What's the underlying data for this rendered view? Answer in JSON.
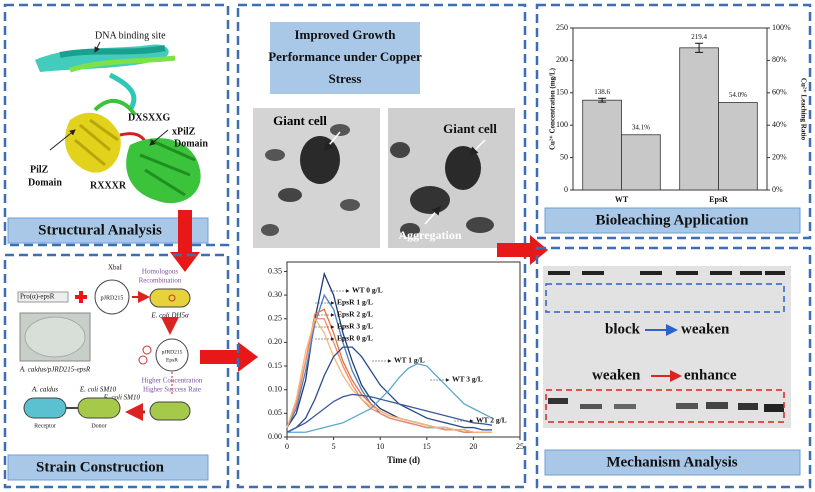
{
  "structural_analysis": {
    "dna_binding_site": "DNA binding site",
    "dxsxxg": "DXSXXG",
    "pilz": [
      "PilZ",
      "Domain"
    ],
    "xpilz": [
      "xPilZ",
      "Domain"
    ],
    "rxxxr": "RXXXR",
    "footer": "Structural Analysis"
  },
  "strain_construction": {
    "promoter": "Pro(α)-epsR",
    "xbai": "XbaI",
    "homologous": [
      "Homologous",
      "Recombination"
    ],
    "plasmid": "pJRD215",
    "dh5a": "E. coli DH5α",
    "plasmid2": [
      "pJRD215",
      "EpsR"
    ],
    "higher": [
      "Higher Concentration",
      "Higher Success Rate"
    ],
    "sm10": "E. coli SM10",
    "acaldus": "A. caldus",
    "sm10b": "E. coli SM10",
    "receptor": "Receptor",
    "donor": "Donor",
    "result": "A. caldus/pJRD215-epsR",
    "footer": "Strain Construction"
  },
  "growth": {
    "title": [
      "Improved Growth",
      "Performance under Copper",
      "Stress"
    ],
    "giant1": "Giant cell",
    "giant2": "Giant cell",
    "aggregation": "Aggregation"
  },
  "bioleaching": {
    "footer": "Bioleaching Application"
  },
  "mechanism": {
    "block": "block",
    "weaken1": "weaken",
    "weaken2": "weaken",
    "enhance": "enhance",
    "footer": "Mechanism Analysis"
  },
  "chart_data": [
    {
      "type": "bar",
      "categories": [
        "WT",
        "EpsR"
      ],
      "ylabel": "Cu²⁺ Concentration (mg/L)",
      "y2label": "Cu²⁺ Leaching Ratio",
      "ylim": [
        0,
        250
      ],
      "yticks": [
        0,
        50,
        100,
        150,
        200,
        250
      ],
      "y2lim": [
        0,
        100
      ],
      "y2ticks": [
        {
          "value": 0,
          "label": "0%"
        },
        {
          "value": 20,
          "label": "20%"
        },
        {
          "value": 40,
          "label": "40%"
        },
        {
          "value": 60,
          "label": "60%"
        },
        {
          "value": 80,
          "label": "80%"
        },
        {
          "value": 100,
          "label": "100%"
        }
      ],
      "series": [
        {
          "color": "#c8c8c8",
          "values": [
            138.6,
            219.4
          ],
          "errors": [
            3,
            7
          ]
        },
        {
          "color": "#c8c8c8",
          "axis": "y2",
          "values": [
            34.1,
            54.0
          ],
          "value_labels": [
            "34.1%",
            "54.0%"
          ]
        }
      ]
    },
    {
      "type": "line",
      "xlabel": "Time (d)",
      "x": [
        0,
        1,
        2,
        3,
        4,
        5,
        6,
        7,
        8,
        9,
        10,
        11,
        12,
        13,
        14,
        15,
        16,
        17,
        18,
        19,
        20,
        21,
        22
      ],
      "xlim": [
        0,
        25
      ],
      "xticks": [
        0,
        5,
        10,
        15,
        20,
        25
      ],
      "ylim": [
        0,
        0.37
      ],
      "yticks": [
        {
          "value": 0,
          "label": "0.00"
        },
        0.05,
        {
          "value": 0.1,
          "label": "0.10"
        },
        0.15,
        {
          "value": 0.2,
          "label": "0.20"
        },
        0.25,
        {
          "value": 0.3,
          "label": "0.30"
        },
        0.35
      ],
      "series": [
        {
          "name": "WT  0 g/L",
          "color": "#1f3a7a",
          "values": [
            0.02,
            0.05,
            0.12,
            0.25,
            0.345,
            0.3,
            0.22,
            0.16,
            0.11,
            0.08,
            0.06,
            0.05,
            0.04,
            0.035,
            0.03,
            0.025,
            0.02,
            0.02,
            0.015,
            0.015,
            0.01,
            0.01,
            0.01
          ]
        },
        {
          "name": "EpsR 1 g/L",
          "color": "#4a7fc1",
          "values": [
            0.02,
            0.06,
            0.14,
            0.24,
            0.3,
            0.27,
            0.2,
            0.14,
            0.1,
            0.07,
            0.05,
            0.04,
            0.035,
            0.03,
            0.025,
            0.02,
            0.02,
            0.015,
            0.015,
            0.01,
            0.01,
            0.01,
            0.01
          ]
        },
        {
          "name": "EpsR 2 g/L",
          "color": "#e8743b",
          "values": [
            0.02,
            0.07,
            0.16,
            0.26,
            0.27,
            0.22,
            0.16,
            0.12,
            0.09,
            0.07,
            0.055,
            0.045,
            0.04,
            0.035,
            0.03,
            0.025,
            0.02,
            0.02,
            0.015,
            0.015,
            0.01,
            0.01,
            0.01
          ]
        },
        {
          "name": "EpsR 3 g/L",
          "color": "#f08a6c",
          "values": [
            0.02,
            0.07,
            0.16,
            0.25,
            0.25,
            0.2,
            0.15,
            0.11,
            0.08,
            0.06,
            0.05,
            0.04,
            0.035,
            0.03,
            0.025,
            0.02,
            0.02,
            0.015,
            0.015,
            0.01,
            0.01,
            0.01,
            0.01
          ]
        },
        {
          "name": "EpsR 0 g/L",
          "color": "#f5b97a",
          "values": [
            0.02,
            0.08,
            0.18,
            0.25,
            0.22,
            0.17,
            0.13,
            0.1,
            0.08,
            0.065,
            0.055,
            0.045,
            0.04,
            0.035,
            0.03,
            0.025,
            0.02,
            0.02,
            0.015,
            0.015,
            0.01,
            0.01,
            0.01
          ]
        },
        {
          "name": "WT  1 g/L",
          "color": "#2b4c8c",
          "values": [
            0.01,
            0.02,
            0.04,
            0.08,
            0.13,
            0.17,
            0.19,
            0.19,
            0.17,
            0.14,
            0.11,
            0.09,
            0.07,
            0.06,
            0.05,
            0.04,
            0.035,
            0.03,
            0.025,
            0.02,
            0.02,
            0.015,
            0.015
          ]
        },
        {
          "name": "WT 3 g/L",
          "color": "#5ba8c8",
          "values": [
            0.01,
            0.01,
            0.01,
            0.015,
            0.02,
            0.025,
            0.03,
            0.04,
            0.05,
            0.06,
            0.08,
            0.1,
            0.125,
            0.145,
            0.155,
            0.15,
            0.13,
            0.11,
            0.09,
            0.07,
            0.06,
            0.05,
            0.04
          ]
        },
        {
          "name": "WT 2 g/L",
          "color": "#3a5a9a",
          "values": [
            0.01,
            0.02,
            0.03,
            0.045,
            0.06,
            0.075,
            0.085,
            0.09,
            0.088,
            0.085,
            0.08,
            0.075,
            0.07,
            0.065,
            0.06,
            0.055,
            0.05,
            0.045,
            0.04,
            0.035,
            0.03,
            0.028,
            0.025
          ]
        }
      ]
    }
  ]
}
